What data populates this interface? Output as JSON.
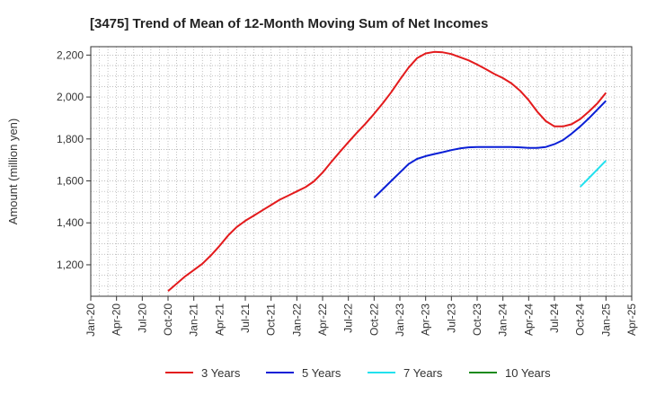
{
  "chart_data": {
    "type": "line",
    "title": "[3475]  Trend of Mean of 12-Month Moving Sum of Net Incomes",
    "xlabel": "",
    "ylabel": "Amount (million yen)",
    "x_ticks": [
      "Jan-20",
      "Apr-20",
      "Jul-20",
      "Oct-20",
      "Jan-21",
      "Apr-21",
      "Jul-21",
      "Oct-21",
      "Jan-22",
      "Apr-22",
      "Jul-22",
      "Oct-22",
      "Jan-23",
      "Apr-23",
      "Jul-23",
      "Oct-23",
      "Jan-24",
      "Apr-24",
      "Jul-24",
      "Oct-24",
      "Jan-25",
      "Apr-25"
    ],
    "y_ticks": [
      1200,
      1400,
      1600,
      1800,
      2000,
      2200
    ],
    "y_tick_labels": [
      "1,200",
      "1,400",
      "1,600",
      "1,800",
      "2,000",
      "2,200"
    ],
    "ylim": [
      1050,
      2240
    ],
    "grid": true,
    "legend_position": "bottom",
    "series": [
      {
        "name": "3 Years",
        "color": "#e31a1c",
        "x": [
          "Oct-20",
          "Nov-20",
          "Dec-20",
          "Jan-21",
          "Feb-21",
          "Mar-21",
          "Apr-21",
          "May-21",
          "Jun-21",
          "Jul-21",
          "Aug-21",
          "Sep-21",
          "Oct-21",
          "Nov-21",
          "Dec-21",
          "Jan-22",
          "Feb-22",
          "Mar-22",
          "Apr-22",
          "May-22",
          "Jun-22",
          "Jul-22",
          "Aug-22",
          "Sep-22",
          "Oct-22",
          "Nov-22",
          "Dec-22",
          "Jan-23",
          "Feb-23",
          "Mar-23",
          "Apr-23",
          "May-23",
          "Jun-23",
          "Jul-23",
          "Aug-23",
          "Sep-23",
          "Oct-23",
          "Nov-23",
          "Dec-23",
          "Jan-24",
          "Feb-24",
          "Mar-24",
          "Apr-24",
          "May-24",
          "Jun-24",
          "Jul-24",
          "Aug-24",
          "Sep-24",
          "Oct-24",
          "Nov-24",
          "Dec-24",
          "Jan-25"
        ],
        "values": [
          1075,
          1110,
          1145,
          1175,
          1205,
          1245,
          1290,
          1340,
          1380,
          1410,
          1435,
          1460,
          1485,
          1510,
          1530,
          1550,
          1570,
          1598,
          1640,
          1690,
          1738,
          1785,
          1830,
          1873,
          1920,
          1970,
          2023,
          2083,
          2140,
          2185,
          2208,
          2215,
          2213,
          2205,
          2190,
          2175,
          2155,
          2133,
          2110,
          2090,
          2065,
          2030,
          1985,
          1930,
          1885,
          1860,
          1860,
          1870,
          1895,
          1930,
          1970,
          2020
        ]
      },
      {
        "name": "5 Years",
        "color": "#0a1fd6",
        "x": [
          "Oct-22",
          "Nov-22",
          "Dec-22",
          "Jan-23",
          "Feb-23",
          "Mar-23",
          "Apr-23",
          "May-23",
          "Jun-23",
          "Jul-23",
          "Aug-23",
          "Sep-23",
          "Oct-23",
          "Nov-23",
          "Dec-23",
          "Jan-24",
          "Feb-24",
          "Mar-24",
          "Apr-24",
          "May-24",
          "Jun-24",
          "Jul-24",
          "Aug-24",
          "Sep-24",
          "Oct-24",
          "Nov-24",
          "Dec-24",
          "Jan-25"
        ],
        "values": [
          1520,
          1560,
          1600,
          1640,
          1680,
          1705,
          1718,
          1728,
          1737,
          1747,
          1755,
          1760,
          1762,
          1762,
          1762,
          1762,
          1762,
          1760,
          1757,
          1757,
          1762,
          1775,
          1795,
          1825,
          1860,
          1898,
          1940,
          1982
        ]
      },
      {
        "name": "7 Years",
        "color": "#22e1ee",
        "x": [
          "Oct-24",
          "Nov-24",
          "Dec-24",
          "Jan-25"
        ],
        "values": [
          1572,
          1613,
          1655,
          1697
        ]
      },
      {
        "name": "10 Years",
        "color": "#1a8a1a",
        "x": [],
        "values": []
      }
    ]
  }
}
